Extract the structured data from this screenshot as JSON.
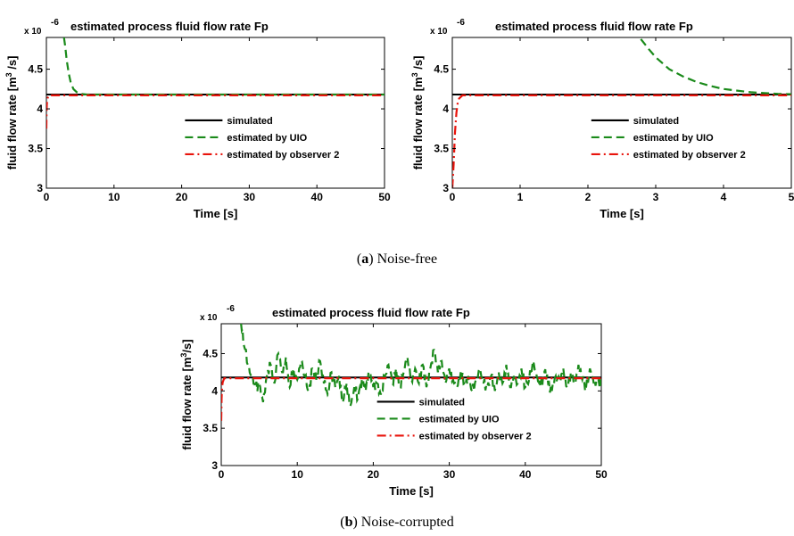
{
  "chart_data": [
    {
      "type": "line",
      "title": "estimated process fluid flow rate Fp",
      "multiplier": "x 10",
      "multiplier_exp": "-6",
      "xlabel": "Time [s]",
      "ylabel_pre": "fluid flow rate [m",
      "ylabel_sup": "3",
      "ylabel_post": " /s]",
      "xlim": [
        0,
        50
      ],
      "ylim": [
        3,
        4.9
      ],
      "xticks": [
        "0",
        "10",
        "20",
        "30",
        "40",
        "50"
      ],
      "yticks": [
        "3",
        "3.5",
        "4",
        "4.5"
      ],
      "grid": false,
      "legend_position": "center-right",
      "series": [
        {
          "name": "simulated",
          "color": "#000000",
          "dash": "",
          "x": [
            0,
            50
          ],
          "y": [
            4.18,
            4.18
          ]
        },
        {
          "name": "estimated by UIO",
          "color": "#1a8a1a",
          "dash": "9,5",
          "x": [
            2.6,
            2.8,
            3.0,
            3.3,
            3.6,
            4.0,
            4.5,
            5.0,
            6.0,
            8.0,
            50
          ],
          "y": [
            4.9,
            4.78,
            4.62,
            4.45,
            4.33,
            4.25,
            4.21,
            4.19,
            4.18,
            4.18,
            4.18
          ]
        },
        {
          "name": "estimated by observer 2",
          "color": "#e8140c",
          "dash": "10,4,2,4",
          "x": [
            0,
            0.03,
            0.06,
            0.1,
            0.2,
            0.4,
            50
          ],
          "y": [
            3.75,
            3.95,
            4.05,
            4.1,
            4.14,
            4.17,
            4.17
          ]
        }
      ]
    },
    {
      "type": "line",
      "title": "estimated process fluid flow rate Fp",
      "multiplier": "x 10",
      "multiplier_exp": "-6",
      "xlabel": "Time [s]",
      "ylabel_pre": "fluid flow rate [m",
      "ylabel_sup": "3",
      "ylabel_post": " /s]",
      "xlim": [
        0,
        5
      ],
      "ylim": [
        3,
        4.9
      ],
      "xticks": [
        "0",
        "1",
        "2",
        "3",
        "4",
        "5"
      ],
      "yticks": [
        "3",
        "3.5",
        "4",
        "4.5"
      ],
      "grid": false,
      "legend_position": "center-right",
      "series": [
        {
          "name": "simulated",
          "color": "#000000",
          "dash": "",
          "x": [
            0,
            5
          ],
          "y": [
            4.18,
            4.18
          ]
        },
        {
          "name": "estimated by UIO",
          "color": "#1a8a1a",
          "dash": "9,5",
          "x": [
            2.78,
            2.9,
            3.0,
            3.2,
            3.4,
            3.6,
            3.8,
            4.0,
            4.2,
            4.4,
            4.6,
            4.8,
            5.0
          ],
          "y": [
            4.88,
            4.75,
            4.65,
            4.5,
            4.41,
            4.34,
            4.29,
            4.25,
            4.23,
            4.21,
            4.2,
            4.19,
            4.185
          ]
        },
        {
          "name": "estimated by observer 2",
          "color": "#e8140c",
          "dash": "10,4,2,4",
          "x": [
            0,
            0.02,
            0.04,
            0.06,
            0.08,
            0.1,
            0.15,
            5
          ],
          "y": [
            3.0,
            3.3,
            3.7,
            3.95,
            4.08,
            4.13,
            4.17,
            4.17
          ]
        }
      ]
    },
    {
      "type": "line",
      "title": "estimated process fluid flow rate Fp",
      "multiplier": "x 10",
      "multiplier_exp": "-6",
      "xlabel": "Time [s]",
      "ylabel_pre": "fluid flow rate [m",
      "ylabel_sup": "3",
      "ylabel_post": "/s]",
      "xlim": [
        0,
        50
      ],
      "ylim": [
        3,
        4.9
      ],
      "xticks": [
        "0",
        "10",
        "20",
        "30",
        "40",
        "50"
      ],
      "yticks": [
        "3",
        "3.5",
        "4",
        "4.5"
      ],
      "grid": false,
      "legend_position": "center-right",
      "series": [
        {
          "name": "simulated",
          "color": "#000000",
          "dash": "",
          "x": [
            0,
            50
          ],
          "y": [
            4.18,
            4.18
          ]
        },
        {
          "name": "estimated by UIO",
          "color": "#1a8a1a",
          "dash": "9,5",
          "noisy": true,
          "x": [
            2.6,
            3.0,
            3.5,
            4.0,
            4.5,
            5.0,
            5.5,
            6.0,
            6.5,
            7.0,
            7.5,
            8.0,
            8.5,
            9.0,
            9.5,
            10.0,
            10.5,
            11.0,
            11.5,
            12.0,
            12.5,
            13.0,
            13.5,
            14.0,
            14.5,
            15.0,
            15.5,
            16.0,
            16.5,
            17.0,
            17.5,
            18.0,
            18.5,
            19.0,
            19.5,
            20.0,
            20.5,
            21.0,
            21.5,
            22.0,
            22.5,
            23.0,
            23.5,
            24.0,
            24.5,
            25.0,
            25.5,
            26.0,
            26.5,
            27.0,
            27.5,
            28.0,
            28.5,
            29.0,
            29.5,
            30.0,
            30.5,
            31.0,
            31.5,
            32.0,
            32.5,
            33.0,
            33.5,
            34.0,
            34.5,
            35.0,
            35.5,
            36.0,
            36.5,
            37.0,
            37.5,
            38.0,
            38.5,
            39.0,
            39.5,
            40.0,
            40.5,
            41.0,
            41.5,
            42.0,
            42.5,
            43.0,
            43.5,
            44.0,
            44.5,
            45.0,
            45.5,
            46.0,
            46.5,
            47.0,
            47.5,
            48.0,
            48.5,
            49.0,
            49.5,
            50.0
          ],
          "y": [
            4.9,
            4.6,
            4.35,
            4.2,
            4.05,
            4.1,
            3.85,
            4.2,
            4.35,
            4.1,
            4.5,
            4.25,
            4.45,
            4.05,
            4.3,
            4.15,
            4.4,
            4.2,
            4.0,
            4.3,
            4.15,
            4.4,
            4.1,
            3.95,
            4.25,
            4.05,
            4.2,
            3.85,
            4.1,
            3.8,
            4.05,
            3.9,
            4.15,
            4.0,
            4.25,
            4.05,
            4.1,
            3.95,
            4.2,
            4.35,
            4.1,
            4.3,
            4.05,
            4.25,
            4.45,
            4.15,
            4.3,
            4.1,
            4.35,
            4.05,
            4.3,
            4.55,
            4.25,
            4.4,
            4.1,
            4.3,
            4.15,
            4.05,
            4.25,
            4.1,
            4.2,
            4.0,
            4.15,
            4.3,
            4.1,
            4.05,
            4.2,
            4.0,
            4.25,
            4.1,
            4.35,
            4.05,
            4.2,
            4.1,
            4.3,
            4.05,
            4.15,
            4.4,
            4.2,
            4.05,
            4.25,
            4.1,
            4.0,
            4.2,
            4.15,
            4.3,
            4.05,
            4.25,
            4.1,
            4.35,
            4.15,
            4.05,
            4.3,
            4.1,
            4.15,
            4.05
          ]
        },
        {
          "name": "estimated by observer 2",
          "color": "#e8140c",
          "dash": "10,4,2,4",
          "x": [
            0,
            0.05,
            0.1,
            0.2,
            0.4,
            50
          ],
          "y": [
            3.6,
            3.9,
            4.05,
            4.12,
            4.17,
            4.17
          ]
        }
      ]
    }
  ],
  "captions": {
    "a_letter": "a",
    "a_text": " Noise-free",
    "b_letter": "b",
    "b_text": " Noise-corrupted"
  }
}
